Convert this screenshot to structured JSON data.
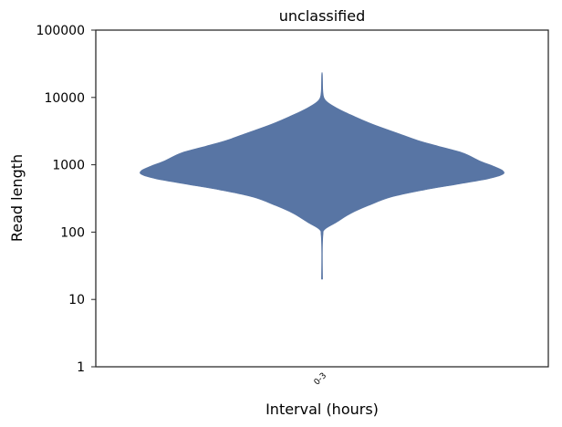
{
  "chart_data": {
    "type": "violin",
    "title": "unclassified",
    "xlabel": "Interval (hours)",
    "ylabel": "Read length",
    "y_scale": "log",
    "ylim": [
      1,
      100000
    ],
    "yticks": [
      "1",
      "10",
      "100",
      "1000",
      "10000",
      "100000"
    ],
    "categories": [
      "0-3"
    ],
    "colors": {
      "violin": "#5875a4",
      "axes": "#262626",
      "background": "#ffffff"
    },
    "grid": false,
    "violins": [
      {
        "category": "0-3",
        "min": 20,
        "max": 22000,
        "profile": [
          {
            "y": 20,
            "halfwidth": 0.003
          },
          {
            "y": 50,
            "halfwidth": 0.002
          },
          {
            "y": 90,
            "halfwidth": 0.005
          },
          {
            "y": 110,
            "halfwidth": 0.015
          },
          {
            "y": 140,
            "halfwidth": 0.08
          },
          {
            "y": 190,
            "halfwidth": 0.16
          },
          {
            "y": 250,
            "halfwidth": 0.26
          },
          {
            "y": 330,
            "halfwidth": 0.38
          },
          {
            "y": 420,
            "halfwidth": 0.56
          },
          {
            "y": 520,
            "halfwidth": 0.76
          },
          {
            "y": 620,
            "halfwidth": 0.92
          },
          {
            "y": 720,
            "halfwidth": 1.0
          },
          {
            "y": 820,
            "halfwidth": 1.0
          },
          {
            "y": 950,
            "halfwidth": 0.95
          },
          {
            "y": 1150,
            "halfwidth": 0.87
          },
          {
            "y": 1500,
            "halfwidth": 0.78
          },
          {
            "y": 1900,
            "halfwidth": 0.64
          },
          {
            "y": 2300,
            "halfwidth": 0.53
          },
          {
            "y": 3000,
            "halfwidth": 0.41
          },
          {
            "y": 4000,
            "halfwidth": 0.28
          },
          {
            "y": 5500,
            "halfwidth": 0.16
          },
          {
            "y": 7000,
            "halfwidth": 0.08
          },
          {
            "y": 8500,
            "halfwidth": 0.03
          },
          {
            "y": 10000,
            "halfwidth": 0.01
          },
          {
            "y": 13000,
            "halfwidth": 0.004
          },
          {
            "y": 22000,
            "halfwidth": 0.002
          }
        ]
      }
    ]
  }
}
